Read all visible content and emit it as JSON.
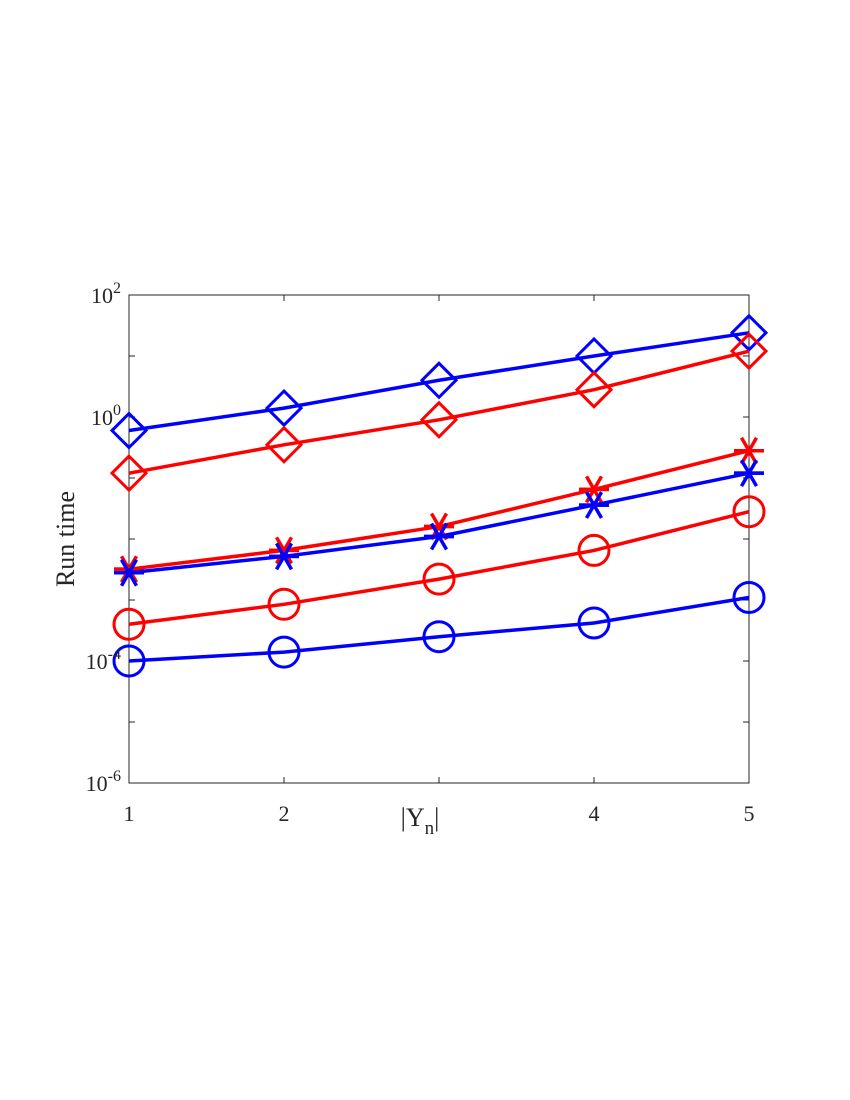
{
  "chart_data": {
    "type": "line",
    "title": "",
    "xlabel": "|Y_n|",
    "ylabel": "Run time",
    "x_ticks": [
      "1",
      "2",
      "4",
      "5"
    ],
    "y_ticks": [
      {
        "base": "10",
        "exp": "2",
        "value": 100
      },
      {
        "base": "10",
        "exp": "0",
        "value": 1
      },
      {
        "base": "10",
        "exp": "-4",
        "value": 0.0001
      },
      {
        "base": "10",
        "exp": "-6",
        "value": 1e-06
      }
    ],
    "xlim": [
      1,
      5
    ],
    "ylim": [
      1e-06,
      100
    ],
    "yscale": "log",
    "grid": false,
    "x": [
      1,
      2,
      3,
      4,
      5
    ],
    "series": [
      {
        "color": "#0000ff",
        "marker": "diamond",
        "values": [
          0.6,
          1.4,
          4.0,
          10.0,
          24.0
        ]
      },
      {
        "color": "#ff0000",
        "marker": "diamond",
        "values": [
          0.12,
          0.35,
          0.9,
          2.8,
          12.0
        ]
      },
      {
        "color": "#ff0000",
        "marker": "asterisk",
        "values": [
          0.0032,
          0.0065,
          0.016,
          0.065,
          0.28
        ]
      },
      {
        "color": "#0000ff",
        "marker": "asterisk",
        "values": [
          0.0028,
          0.0052,
          0.011,
          0.036,
          0.12
        ]
      },
      {
        "color": "#ff0000",
        "marker": "circle",
        "values": [
          0.0004,
          0.00085,
          0.0022,
          0.0065,
          0.028
        ]
      },
      {
        "color": "#0000ff",
        "marker": "circle",
        "values": [
          0.0001,
          0.00014,
          0.00025,
          0.00042,
          0.0011
        ]
      }
    ]
  }
}
